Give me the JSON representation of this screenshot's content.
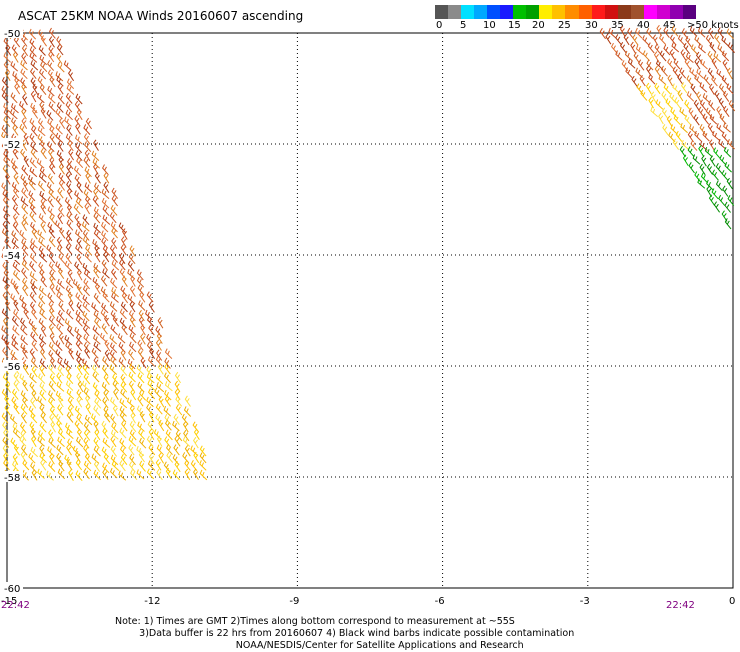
{
  "title": "ASCAT 25KM NOAA Winds 20160607 ascending",
  "legend": {
    "colors": [
      "#555555",
      "#8a8a8a",
      "#00e0ff",
      "#00a8ff",
      "#0050ff",
      "#1a1aff",
      "#00c000",
      "#00a000",
      "#ffee00",
      "#ffc000",
      "#ff8c00",
      "#ff6000",
      "#ff1a1a",
      "#d01010",
      "#8b3a1a",
      "#a0522d",
      "#ff00ff",
      "#d000d0",
      "#9000b0",
      "#5a0080"
    ],
    "labels": [
      "0",
      "5",
      "10",
      "15",
      "20",
      "25",
      "30",
      "35",
      "40",
      "45",
      ">50 knots"
    ]
  },
  "axes": {
    "x_ticks": [
      {
        "value": -15,
        "label": "-15"
      },
      {
        "value": -12,
        "label": "-12"
      },
      {
        "value": -9,
        "label": "-9"
      },
      {
        "value": -6,
        "label": "-6"
      },
      {
        "value": -3,
        "label": "-3"
      },
      {
        "value": 0,
        "label": "0"
      }
    ],
    "y_ticks": [
      {
        "value": -50,
        "label": "-50"
      },
      {
        "value": -52,
        "label": "-52"
      },
      {
        "value": -54,
        "label": "-54"
      },
      {
        "value": -56,
        "label": "-56"
      },
      {
        "value": -58,
        "label": "-58"
      },
      {
        "value": -60,
        "label": "-60"
      }
    ],
    "xlim": [
      -15,
      0
    ],
    "ylim": [
      -60,
      -50
    ]
  },
  "times": {
    "left": "22:42",
    "right": "22:42"
  },
  "note": {
    "line1": "Note: 1) Times are GMT 2)Times along bottom correspond to measurement at ~55S",
    "line2": "        3)Data buffer is 22 hrs from 20160607 4) Black wind barbs indicate possible contamination",
    "line3": "                                        NOAA/NESDIS/Center for Satellite Applications and Research"
  }
}
